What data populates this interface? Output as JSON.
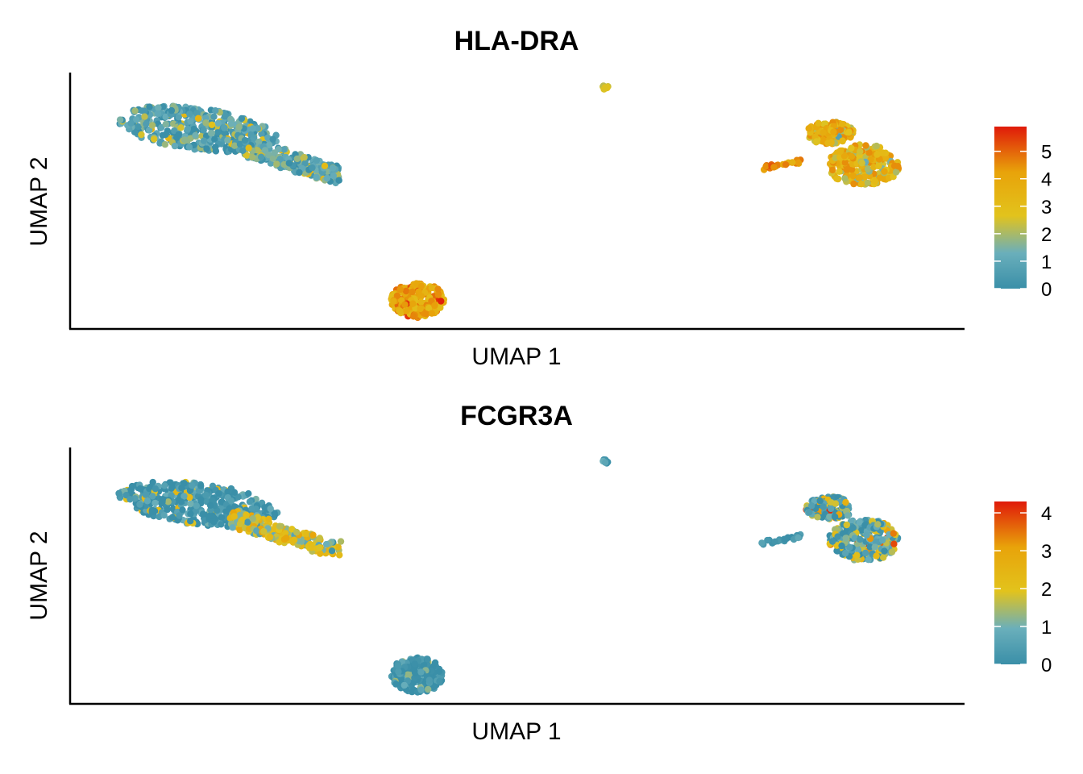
{
  "colorscale": [
    "#3A8FA8",
    "#6AAFBB",
    "#E2C31C",
    "#E8A30A",
    "#E01A0A"
  ],
  "chart_data": [
    {
      "type": "scatter",
      "title": "HLA-DRA",
      "xlabel": "UMAP 1",
      "ylabel": "UMAP 2",
      "grid": false,
      "legend": "right",
      "colorbar": {
        "min": 0,
        "max": 5.9,
        "ticks": [
          "0",
          "1",
          "2",
          "3",
          "4",
          "5"
        ]
      },
      "clusters": [
        {
          "name": "left-upper",
          "expression_mean": 0.7,
          "expression_range": [
            0,
            3.5
          ]
        },
        {
          "name": "left-tail",
          "expression_mean": 0.9,
          "expression_range": [
            0,
            3.5
          ]
        },
        {
          "name": "bottom",
          "expression_mean": 3.9,
          "expression_range": [
            3,
            5.8
          ]
        },
        {
          "name": "top-small",
          "expression_mean": 2.5,
          "expression_range": [
            2,
            3
          ]
        },
        {
          "name": "right-streak",
          "expression_mean": 4.5,
          "expression_range": [
            3.5,
            5.5
          ]
        },
        {
          "name": "right-large",
          "expression_mean": 3.3,
          "expression_range": [
            0,
            4.5
          ]
        }
      ]
    },
    {
      "type": "scatter",
      "title": "FCGR3A",
      "xlabel": "UMAP 1",
      "ylabel": "UMAP 2",
      "grid": false,
      "legend": "right",
      "colorbar": {
        "min": 0,
        "max": 4.3,
        "ticks": [
          "0",
          "1",
          "2",
          "3",
          "4"
        ]
      },
      "clusters": [
        {
          "name": "left-upper",
          "expression_mean": 0.1,
          "expression_range": [
            0,
            2.5
          ]
        },
        {
          "name": "left-tail",
          "expression_mean": 1.8,
          "expression_range": [
            0,
            3
          ]
        },
        {
          "name": "bottom",
          "expression_mean": 0.1,
          "expression_range": [
            0,
            1.5
          ]
        },
        {
          "name": "top-small",
          "expression_mean": 0.3,
          "expression_range": [
            0,
            1
          ]
        },
        {
          "name": "right-streak",
          "expression_mean": 0.2,
          "expression_range": [
            0,
            0.8
          ]
        },
        {
          "name": "right-large",
          "expression_mean": 0.8,
          "expression_range": [
            0,
            4.2
          ]
        }
      ]
    }
  ]
}
